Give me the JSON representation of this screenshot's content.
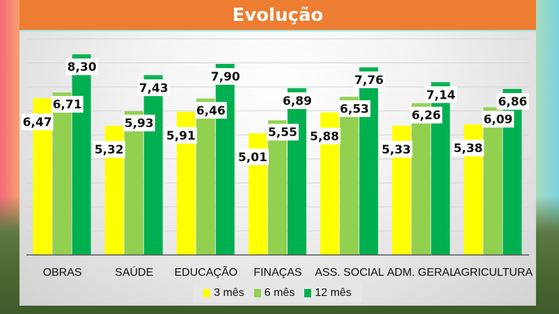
{
  "title": "Evolução",
  "chart_data": {
    "type": "bar",
    "title": "Evolução",
    "xlabel": "",
    "ylabel": "",
    "ylim": [
      0,
      9
    ],
    "grid": true,
    "legend_position": "bottom",
    "categories": [
      "OBRAS",
      "SAÚDE",
      "EDUCAÇÃO",
      "FINAÇAS",
      "ASS. SOCIAL",
      "ADM. GERAL",
      "AGRICULTURA"
    ],
    "series": [
      {
        "name": "3 mês",
        "color": "#ffff00",
        "values": [
          6.47,
          5.32,
          5.91,
          5.01,
          5.88,
          5.33,
          5.38
        ],
        "labels": [
          "6,47",
          "5,32",
          "5,91",
          "5,01",
          "5,88",
          "5,33",
          "5,38"
        ]
      },
      {
        "name": "6 mês",
        "color": "#92d050",
        "values": [
          6.71,
          5.93,
          6.46,
          5.55,
          6.53,
          6.26,
          6.09
        ],
        "labels": [
          "6,71",
          "5,93",
          "6,46",
          "5,55",
          "6,53",
          "6,26",
          "6,09"
        ]
      },
      {
        "name": "12 mês",
        "color": "#00b050",
        "values": [
          8.3,
          7.43,
          7.9,
          6.89,
          7.76,
          7.14,
          6.86
        ],
        "labels": [
          "8,30",
          "7,43",
          "7,90",
          "6,89",
          "7,76",
          "7,14",
          "6,86"
        ]
      }
    ]
  }
}
